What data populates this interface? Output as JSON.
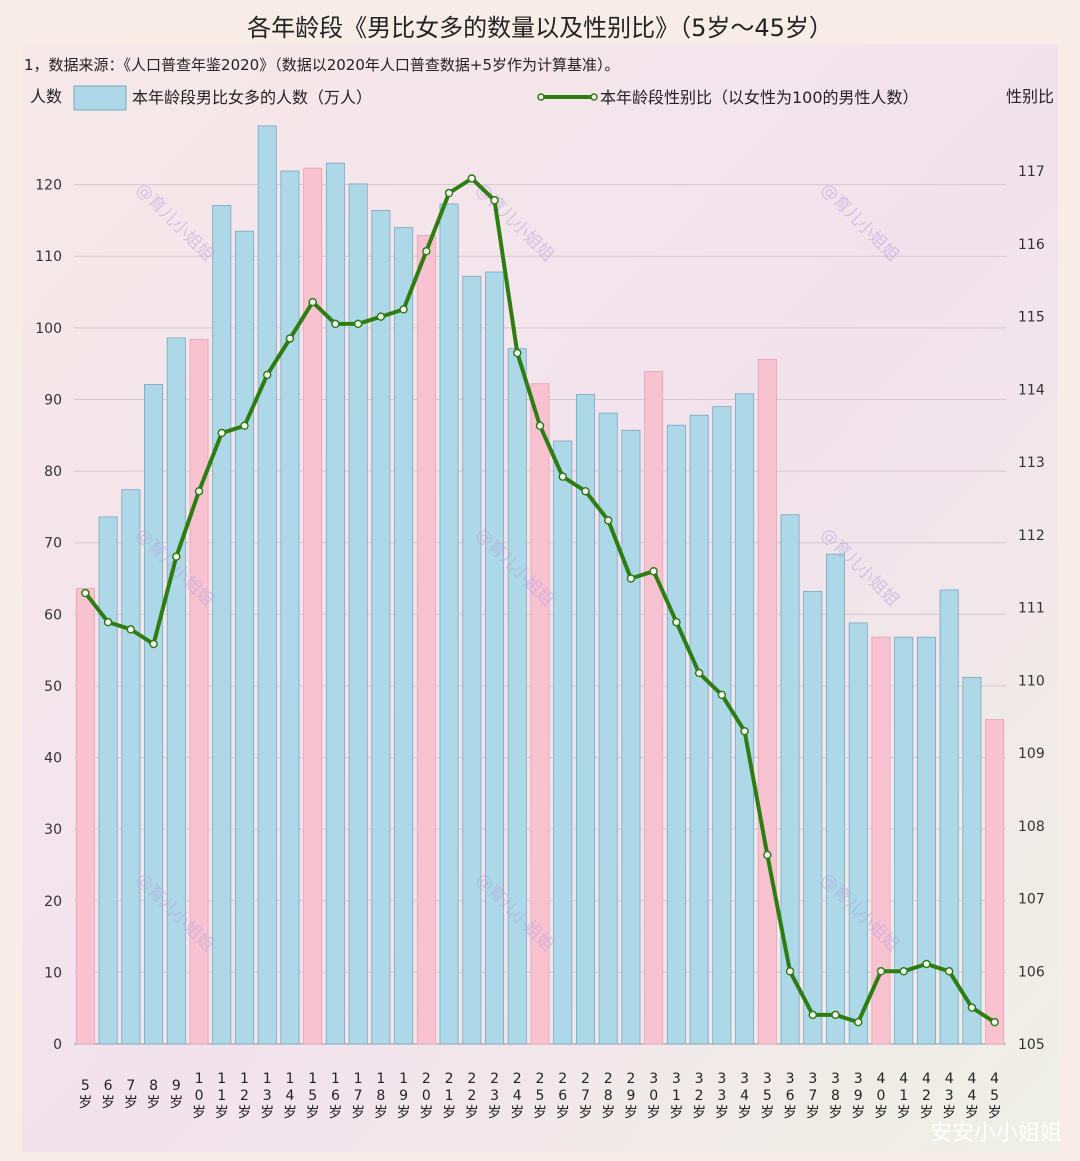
{
  "title": "各年龄段《男比女多的数量以及性别比》（5岁～45岁）",
  "note": "1，数据来源：《人口普查年鉴2020》（数据以2020年人口普查数据+5岁作为计算基准）。",
  "watermark": "@育儿小姐姐",
  "corner_watermark": "安安小小姐姐",
  "chart_data": {
    "type": "bar",
    "categories": [
      "5岁",
      "6岁",
      "7岁",
      "8岁",
      "9岁",
      "10岁",
      "11岁",
      "12岁",
      "13岁",
      "14岁",
      "15岁",
      "16岁",
      "17岁",
      "18岁",
      "19岁",
      "20岁",
      "21岁",
      "22岁",
      "23岁",
      "24岁",
      "25岁",
      "26岁",
      "27岁",
      "28岁",
      "29岁",
      "30岁",
      "31岁",
      "32岁",
      "33岁",
      "34岁",
      "35岁",
      "36岁",
      "37岁",
      "38岁",
      "39岁",
      "40岁",
      "41岁",
      "42岁",
      "43岁",
      "44岁",
      "45岁"
    ],
    "left_axis": {
      "label": "人数",
      "range": [
        0,
        130
      ],
      "ticks": [
        0,
        10,
        20,
        30,
        40,
        50,
        60,
        70,
        80,
        90,
        100,
        110,
        120
      ]
    },
    "right_axis": {
      "label": "性别比",
      "range": [
        105,
        117.8
      ],
      "ticks": [
        105,
        106,
        107,
        108,
        109,
        110,
        111,
        112,
        113,
        114,
        115,
        116,
        117
      ]
    },
    "series": [
      {
        "name": "本年龄段男比女多的人数（万人）",
        "type": "bar",
        "axis": "left",
        "values": [
          63.6,
          73.6,
          77.4,
          92.1,
          98.6,
          98.4,
          117.1,
          113.5,
          128.2,
          121.9,
          122.3,
          123.0,
          120.1,
          116.4,
          114.0,
          112.9,
          117.3,
          107.2,
          107.8,
          97.1,
          92.2,
          84.2,
          90.7,
          88.1,
          85.7,
          93.9,
          86.4,
          87.8,
          89.0,
          90.8,
          95.6,
          73.9,
          63.2,
          68.4,
          58.8,
          56.8,
          56.8,
          56.8,
          63.4,
          51.2,
          45.3
        ],
        "highlighted": [
          "5岁",
          "10岁",
          "15岁",
          "20岁",
          "25岁",
          "30岁",
          "35岁",
          "40岁",
          "45岁"
        ]
      },
      {
        "name": "本年龄段性别比（以女性为100的男性人数）",
        "type": "line",
        "axis": "right",
        "values": [
          111.2,
          110.8,
          110.7,
          110.5,
          111.7,
          112.6,
          113.4,
          113.5,
          114.2,
          114.7,
          115.2,
          114.9,
          114.9,
          115.0,
          115.1,
          115.9,
          116.7,
          116.9,
          116.6,
          114.5,
          113.5,
          112.8,
          112.6,
          112.2,
          111.4,
          111.5,
          110.8,
          110.1,
          109.8,
          109.3,
          107.6,
          106.0,
          105.4,
          105.4,
          105.3,
          106.0,
          106.0,
          106.1,
          106.0,
          105.5,
          105.3
        ]
      }
    ],
    "colors": {
      "bar": "#acd8e7",
      "bar_highlight": "#f9c2d0",
      "bar_border": "#7aa7c0",
      "line": "#2e7d12",
      "marker": "#ffffff"
    },
    "grid": true,
    "legend_position": "top"
  }
}
